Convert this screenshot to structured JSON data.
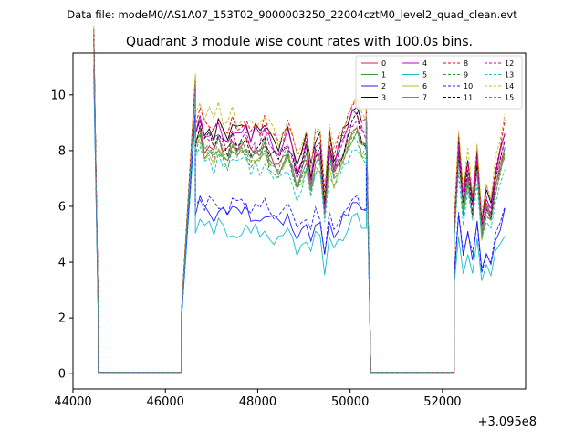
{
  "suptitle": "Data file: modeM0/AS1A07_153T02_9000003250_22004cztM0_level2_quad_clean.evt",
  "chart_data": {
    "type": "line",
    "title": "Quadrant 3 module wise count rates with 100.0s bins.",
    "xlabel": "",
    "ylabel": "",
    "x_offset_label": "+3.095e8",
    "xlim": [
      44000,
      53800
    ],
    "ylim": [
      -0.55,
      11.5
    ],
    "x_ticks": [
      44000,
      46000,
      48000,
      50000,
      52000
    ],
    "x_tick_labels": [
      "44000",
      "46000",
      "48000",
      "50000",
      "52000"
    ],
    "y_ticks": [
      0,
      2,
      4,
      6,
      8,
      10
    ],
    "y_tick_labels": [
      "0",
      "2",
      "4",
      "6",
      "8",
      "10"
    ],
    "legend_position": "upper-right",
    "segments": [
      {
        "start": 44450,
        "end": 44550,
        "levels": [
          11.0,
          1.8
        ]
      },
      {
        "start": 44550,
        "end": 46350,
        "levels": [
          0.05,
          0.05
        ]
      },
      {
        "start": 46350,
        "end": 46650,
        "levels": [
          2.0,
          9.5
        ]
      },
      {
        "start": 46650,
        "end": 50350,
        "pattern": "flare"
      },
      {
        "start": 50350,
        "end": 50450,
        "levels": [
          8.5,
          0.05
        ]
      },
      {
        "start": 50450,
        "end": 52250,
        "levels": [
          0.05,
          0.05
        ]
      },
      {
        "start": 52250,
        "end": 53350,
        "pattern": "second"
      }
    ],
    "series": [
      {
        "name": "0",
        "color": "#d62728",
        "style": "solid",
        "level": 8.3
      },
      {
        "name": "1",
        "color": "#2ca02c",
        "style": "solid",
        "level": 8.1
      },
      {
        "name": "2",
        "color": "#1f1fff",
        "style": "solid",
        "level": 5.9
      },
      {
        "name": "3",
        "color": "#000000",
        "style": "solid",
        "level": 8.9
      },
      {
        "name": "4",
        "color": "#c000c0",
        "style": "solid",
        "level": 8.8
      },
      {
        "name": "5",
        "color": "#17becf",
        "style": "solid",
        "level": 5.2
      },
      {
        "name": "6",
        "color": "#bcbd22",
        "style": "solid",
        "level": 8.0
      },
      {
        "name": "7",
        "color": "#7f7f7f",
        "style": "solid",
        "level": 8.2
      },
      {
        "name": "8",
        "color": "#ff0000",
        "style": "dashed",
        "level": 9.1
      },
      {
        "name": "9",
        "color": "#2ca02c",
        "style": "dashed",
        "level": 8.0
      },
      {
        "name": "10",
        "color": "#1f1fff",
        "style": "dashed",
        "level": 6.1
      },
      {
        "name": "11",
        "color": "#000000",
        "style": "dashed",
        "level": 8.4
      },
      {
        "name": "12",
        "color": "#c000c0",
        "style": "dashed",
        "level": 8.6
      },
      {
        "name": "13",
        "color": "#17becf",
        "style": "dashed",
        "level": 7.6
      },
      {
        "name": "14",
        "color": "#bcbd22",
        "style": "dashed",
        "level": 9.3
      },
      {
        "name": "15",
        "color": "#7f7f7f",
        "style": "dashed",
        "level": 8.1
      }
    ]
  }
}
